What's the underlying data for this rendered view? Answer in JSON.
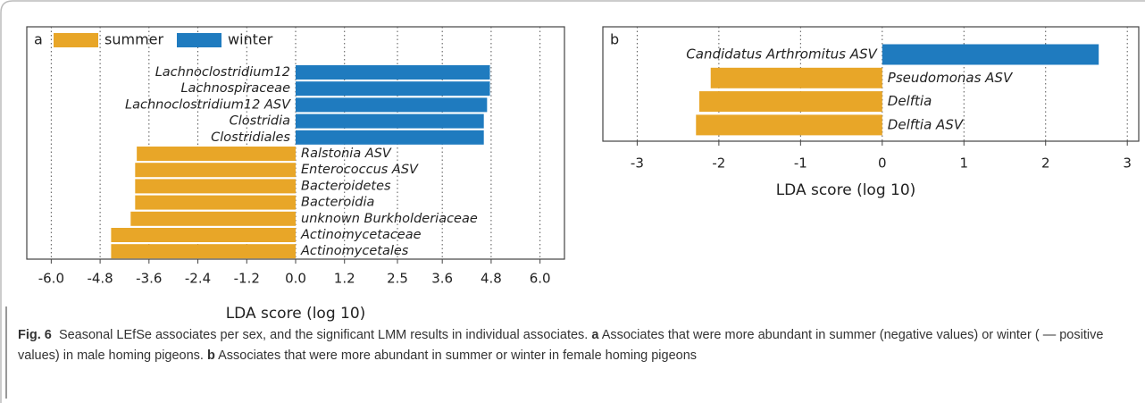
{
  "chart_data": [
    {
      "type": "bar",
      "orientation": "horizontal",
      "panel": "a",
      "legend": [
        {
          "name": "summer",
          "color": "#e8a628"
        },
        {
          "name": "winter",
          "color": "#1f7bbf"
        }
      ],
      "categories": [
        "Lachnoclostridium12",
        "Lachnospiraceae",
        "Lachnoclostridium12 ASV",
        "Clostridia",
        "Clostridiales",
        "Ralstonia ASV",
        "Enterococcus ASV",
        "Bacteroidetes",
        "Bacteroidia",
        "unknown Burkholderiaceae",
        "Actinomycetaceae",
        "Actinomycetales"
      ],
      "values": [
        4.77,
        4.77,
        4.7,
        4.62,
        4.62,
        -3.9,
        -3.94,
        -3.94,
        -3.94,
        -4.05,
        -4.53,
        -4.53
      ],
      "colors": [
        "#1f7bbf",
        "#1f7bbf",
        "#1f7bbf",
        "#1f7bbf",
        "#1f7bbf",
        "#e8a628",
        "#e8a628",
        "#e8a628",
        "#e8a628",
        "#e8a628",
        "#e8a628",
        "#e8a628"
      ],
      "xlim": [
        -6.6,
        6.6
      ],
      "xticks": [
        {
          "value": -6,
          "label": "-6.0"
        },
        {
          "value": -4.8,
          "label": "-4.8"
        },
        {
          "value": -3.6,
          "label": "-3.6"
        },
        {
          "value": -2.4,
          "label": "-2.4"
        },
        {
          "value": -1.2,
          "label": "-1.2"
        },
        {
          "value": 0,
          "label": "0.0"
        },
        1.2,
        2.5,
        3.6,
        4.8,
        {
          "value": 6,
          "label": "6.0"
        }
      ],
      "grid": true,
      "xlabel": "LDA score (log 10)"
    },
    {
      "type": "bar",
      "orientation": "horizontal",
      "panel": "b",
      "categories": [
        "Candidatus Arthromitus ASV",
        "Pseudomonas ASV",
        "Delftia",
        "Delftia ASV"
      ],
      "values": [
        2.65,
        -2.1,
        -2.24,
        -2.28
      ],
      "colors": [
        "#1f7bbf",
        "#e8a628",
        "#e8a628",
        "#e8a628"
      ],
      "xlim": [
        -3.42,
        3.14
      ],
      "xticks": [
        -3,
        -2,
        -1,
        0,
        1,
        2,
        3
      ],
      "grid": true,
      "xlabel": "LDA score (log 10)"
    }
  ],
  "caption": {
    "label": "Fig. 6",
    "text": "Seasonal LEfSe associates per sex, and the significant LMM results in individual associates.",
    "a_label": "a",
    "a_text": "Associates that were more abundant in summer (negative values) or winter ( — positive values) in male homing pigeons.",
    "b_label": "b",
    "b_text": "Associates that were more abundant in summer or winter in female homing pigeons"
  }
}
